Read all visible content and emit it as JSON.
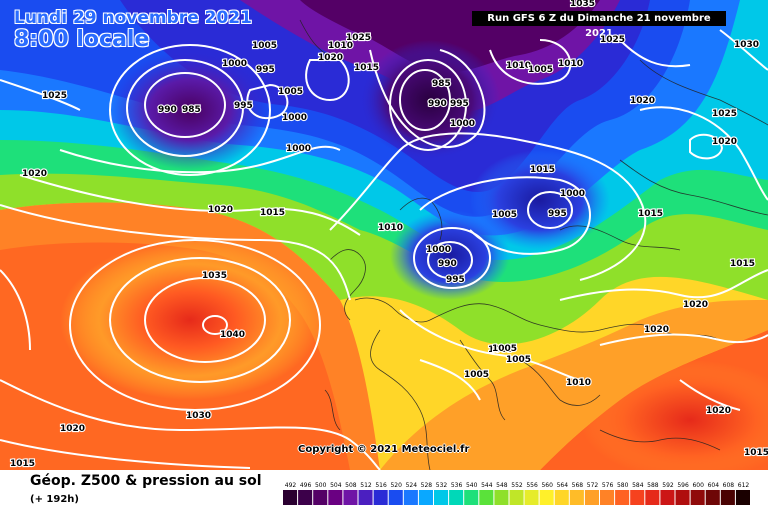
{
  "header": {
    "date": "Lundi 29 novembre 2021",
    "time": "8:00 locale",
    "run": "Run GFS 6 Z du Dimanche 21 novembre 2021"
  },
  "copyright": "Copyright © 2021 Meteociel.fr",
  "footer": {
    "title": "Géop. Z500 & pression au sol",
    "subtitle": "(+ 192h)"
  },
  "legend": {
    "values": [
      "492",
      "496",
      "500",
      "504",
      "508",
      "512",
      "516",
      "520",
      "524",
      "528",
      "532",
      "536",
      "540",
      "544",
      "548",
      "552",
      "556",
      "560",
      "564",
      "568",
      "572",
      "576",
      "580",
      "584",
      "588",
      "592",
      "596",
      "600",
      "604",
      "608",
      "612"
    ],
    "colors": [
      "#2a0030",
      "#3c004a",
      "#540066",
      "#6a0082",
      "#6f14a6",
      "#4b1fc0",
      "#2a2bd6",
      "#1a4cf0",
      "#1a78ff",
      "#0aa8ff",
      "#00c8e8",
      "#00d8b8",
      "#1ee07a",
      "#5ae23a",
      "#8fe02a",
      "#c0e628",
      "#e6ec2a",
      "#fff02a",
      "#ffd628",
      "#ffbc28",
      "#ffa028",
      "#ff8226",
      "#ff6222",
      "#f6421e",
      "#e62a1a",
      "#cc1616",
      "#b00e0e",
      "#900a0a",
      "#6e0606",
      "#4a0202",
      "#1a0000"
    ]
  },
  "pressure_labels": [
    "1005",
    "1000",
    "995",
    "990",
    "985",
    "1020",
    "1025",
    "995",
    "1005",
    "1010",
    "1000",
    "1015",
    "1015",
    "985",
    "990",
    "995",
    "1000",
    "1010",
    "1005",
    "1010",
    "1025",
    "1020",
    "1000",
    "1020",
    "1015",
    "1005",
    "995",
    "1015",
    "1000",
    "1015",
    "1025",
    "1020",
    "1015",
    "1010",
    "1000",
    "990",
    "995",
    "1005",
    "1035",
    "1040",
    "1030",
    "1020",
    "1005",
    "1005",
    "1005",
    "1010",
    "1020",
    "1020",
    "1015",
    "1015",
    "1020",
    "1030",
    "1020",
    "1035",
    "1025"
  ]
}
